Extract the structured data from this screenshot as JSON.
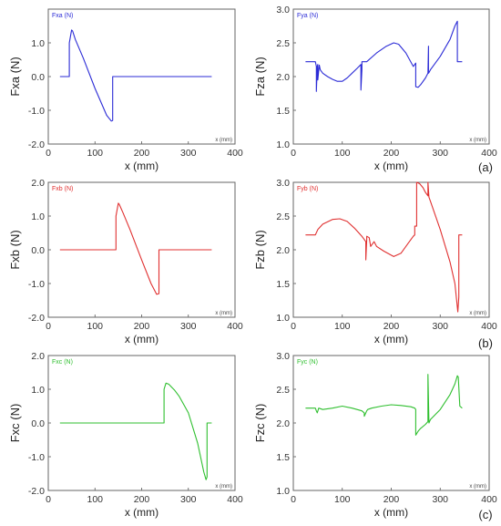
{
  "panel_labels": [
    "(a)",
    "(b)",
    "(c)"
  ],
  "chart_data": [
    {
      "type": "line",
      "legend": "Fxa (N)",
      "xlabel": "x (mm)",
      "ylabel": "Fxa (N)",
      "unit_label": "x (mm)",
      "xlim": [
        0,
        400
      ],
      "ylim": [
        -2.0,
        2.0
      ],
      "xticks": [
        0,
        100,
        200,
        300,
        400
      ],
      "yticks": [
        2.0,
        1.0,
        0.0,
        -1.0,
        -2.0
      ],
      "yticklabels": [
        "",
        "1.0",
        "0.0",
        "-1.0",
        "-2.0"
      ],
      "color": "#2b2bd6",
      "series": [
        {
          "x": [
            25,
            45,
            45,
            50,
            52,
            58,
            75,
            100,
            125,
            135,
            138,
            138,
            200,
            250,
            300,
            350
          ],
          "y": [
            0,
            0,
            1.0,
            1.38,
            1.35,
            1.1,
            0.55,
            -0.35,
            -1.15,
            -1.32,
            -1.3,
            0,
            0,
            0,
            0,
            0
          ]
        }
      ]
    },
    {
      "type": "line",
      "legend": "Fya (N)",
      "xlabel": "x (mm)",
      "ylabel": "Fza (N)",
      "unit_label": "x (mm)",
      "xlim": [
        0,
        400
      ],
      "ylim": [
        1.0,
        3.0
      ],
      "xticks": [
        0,
        100,
        200,
        300,
        400
      ],
      "yticks": [
        3.0,
        2.5,
        2.0,
        1.5,
        1.0
      ],
      "yticklabels": [
        "3.0",
        "2.5",
        "2.0",
        "1.5",
        "1.0"
      ],
      "color": "#2b2bd6",
      "series": [
        {
          "x": [
            25,
            45,
            47,
            47,
            49,
            50,
            50,
            53,
            55,
            60,
            70,
            80,
            90,
            100,
            110,
            120,
            130,
            138,
            138,
            140,
            140,
            148,
            150,
            170,
            190,
            205,
            215,
            230,
            245,
            250,
            250,
            255,
            260,
            270,
            275,
            276,
            276,
            278,
            280,
            300,
            320,
            330,
            335,
            335,
            340,
            345
          ],
          "y": [
            2.22,
            2.22,
            2.15,
            1.78,
            2.15,
            2.18,
            1.95,
            2.17,
            2.1,
            2.05,
            2.0,
            1.96,
            1.93,
            1.93,
            1.98,
            2.05,
            2.12,
            2.18,
            1.8,
            2.1,
            2.22,
            2.22,
            2.22,
            2.35,
            2.45,
            2.5,
            2.48,
            2.35,
            2.15,
            2.2,
            1.85,
            1.84,
            1.88,
            1.98,
            2.05,
            2.45,
            2.05,
            2.07,
            2.1,
            2.3,
            2.55,
            2.75,
            2.82,
            2.22,
            2.22,
            2.22
          ]
        }
      ]
    },
    {
      "type": "line",
      "legend": "Fxb (N)",
      "xlabel": "x (mm)",
      "ylabel": "Fxb (N)",
      "unit_label": "x (mm)",
      "xlim": [
        0,
        400
      ],
      "ylim": [
        -2.0,
        2.0
      ],
      "xticks": [
        0,
        100,
        200,
        300,
        400
      ],
      "yticks": [
        2.0,
        1.0,
        0.0,
        -1.0,
        -2.0
      ],
      "yticklabels": [
        "2.0",
        "1.0",
        "0.0",
        "-1.0",
        "-2.0"
      ],
      "color": "#e03030",
      "series": [
        {
          "x": [
            25,
            145,
            145,
            150,
            152,
            160,
            175,
            200,
            220,
            232,
            237,
            237,
            260,
            300,
            350
          ],
          "y": [
            0,
            0,
            1.0,
            1.38,
            1.35,
            1.1,
            0.6,
            -0.3,
            -1.0,
            -1.32,
            -1.3,
            0,
            0,
            0,
            0
          ]
        }
      ]
    },
    {
      "type": "line",
      "legend": "Fyb (N)",
      "xlabel": "x (mm)",
      "ylabel": "Fzb (N)",
      "unit_label": "x (mm)",
      "xlim": [
        0,
        400
      ],
      "ylim": [
        1.0,
        3.0
      ],
      "xticks": [
        0,
        100,
        200,
        300,
        400
      ],
      "yticks": [
        3.0,
        2.5,
        2.0,
        1.5,
        1.0
      ],
      "yticklabels": [
        "3.0",
        "2.5",
        "2.0",
        "1.5",
        "1.0"
      ],
      "color": "#e03030",
      "series": [
        {
          "x": [
            25,
            45,
            50,
            60,
            80,
            95,
            110,
            125,
            140,
            148,
            148,
            150,
            150,
            155,
            158,
            165,
            170,
            185,
            205,
            220,
            235,
            245,
            248,
            248,
            252,
            252,
            258,
            265,
            270,
            275,
            275,
            277,
            280,
            300,
            320,
            330,
            336,
            338,
            338,
            345
          ],
          "y": [
            2.22,
            2.22,
            2.3,
            2.38,
            2.45,
            2.46,
            2.42,
            2.32,
            2.2,
            2.12,
            1.85,
            2.15,
            2.2,
            2.18,
            2.05,
            2.12,
            2.05,
            1.98,
            1.9,
            1.95,
            2.1,
            2.2,
            2.22,
            2.35,
            2.35,
            3.0,
            2.98,
            2.92,
            2.85,
            2.8,
            3.0,
            2.78,
            2.72,
            2.3,
            1.82,
            1.5,
            1.08,
            1.3,
            2.22,
            2.22
          ]
        }
      ]
    },
    {
      "type": "line",
      "legend": "Fxc (N)",
      "xlabel": "x (mm)",
      "ylabel": "Fxc (N)",
      "unit_label": "x (mm)",
      "xlim": [
        0,
        400
      ],
      "ylim": [
        -2.0,
        2.0
      ],
      "xticks": [
        0,
        100,
        200,
        300,
        400
      ],
      "yticks": [
        2.0,
        1.0,
        0.0,
        -1.0,
        -2.0
      ],
      "yticklabels": [
        "2.0",
        "1.0",
        "0.0",
        "-1.0",
        "-2.0"
      ],
      "color": "#2fbf2f",
      "series": [
        {
          "x": [
            25,
            200,
            248,
            248,
            252,
            258,
            270,
            280,
            300,
            320,
            333,
            338,
            340,
            340,
            350
          ],
          "y": [
            0,
            0,
            0,
            1.0,
            1.18,
            1.15,
            0.98,
            0.8,
            0.3,
            -0.6,
            -1.45,
            -1.68,
            -1.6,
            0,
            0
          ]
        }
      ]
    },
    {
      "type": "line",
      "legend": "Fyc (N)",
      "xlabel": "x (mm)",
      "ylabel": "Fzc (N)",
      "unit_label": "x (mm)",
      "xlim": [
        0,
        400
      ],
      "ylim": [
        1.0,
        3.0
      ],
      "xticks": [
        0,
        100,
        200,
        300,
        400
      ],
      "yticks": [
        3.0,
        2.5,
        2.0,
        1.5,
        1.0
      ],
      "yticklabels": [
        "3.0",
        "2.5",
        "2.0",
        "1.5",
        "1.0"
      ],
      "color": "#2fbf2f",
      "series": [
        {
          "x": [
            25,
            45,
            47,
            49,
            52,
            60,
            80,
            100,
            120,
            140,
            145,
            145,
            150,
            152,
            160,
            180,
            200,
            220,
            240,
            248,
            250,
            250,
            255,
            260,
            270,
            275,
            275,
            277,
            280,
            300,
            320,
            330,
            335,
            337,
            340,
            345
          ],
          "y": [
            2.22,
            2.22,
            2.18,
            2.15,
            2.22,
            2.2,
            2.22,
            2.25,
            2.22,
            2.18,
            2.15,
            2.1,
            2.18,
            2.2,
            2.22,
            2.25,
            2.27,
            2.26,
            2.24,
            2.22,
            2.2,
            1.82,
            1.88,
            1.92,
            1.98,
            2.02,
            2.72,
            2.0,
            2.05,
            2.2,
            2.42,
            2.58,
            2.7,
            2.68,
            2.25,
            2.22
          ]
        }
      ]
    }
  ]
}
